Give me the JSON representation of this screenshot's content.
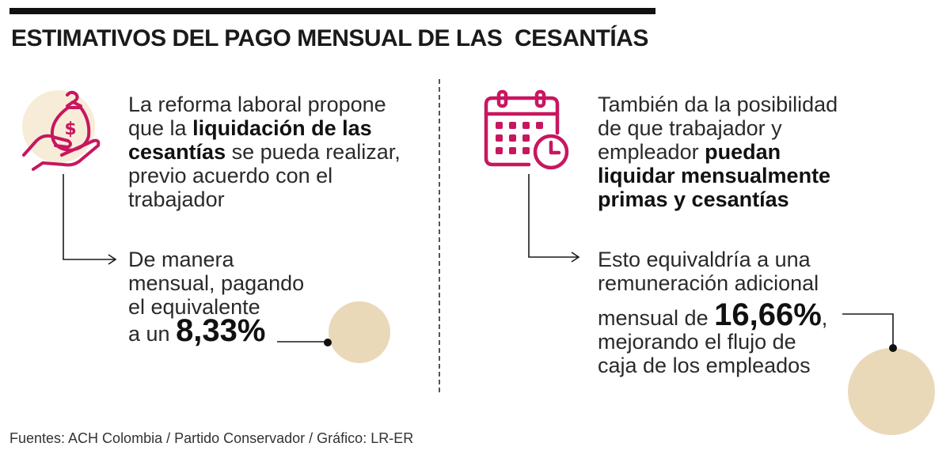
{
  "header": {
    "title": "ESTIMATIVOS DEL PAGO MENSUAL DE LAS  CESANTÍAS"
  },
  "left": {
    "icon": "money-bag-hand-icon",
    "text_1a": "La reforma laboral propone",
    "text_1b": "que la ",
    "text_1c": "liquidación de las",
    "text_1d": "cesantías",
    "text_1e": " se pueda realizar,",
    "text_1f": "previo acuerdo con el",
    "text_1g": "trabajador",
    "text_2a": "De manera",
    "text_2b": "mensual, pagando",
    "text_2c": "el equivalente",
    "text_2d": "a un ",
    "value": "8,33%"
  },
  "right": {
    "icon": "calendar-clock-icon",
    "text_1a": "También da la posibilidad",
    "text_1b": "de que trabajador y",
    "text_1c": "empleador ",
    "text_1d": "puedan",
    "text_1e": "liquidar mensualmente",
    "text_1f": "primas y cesantías",
    "text_2a": "Esto equivaldría a una",
    "text_2b": "remuneración adicional",
    "text_2c": "mensual de ",
    "value": "16,66%",
    "text_2d": ",",
    "text_2e": "mejorando el flujo de",
    "text_2f": "caja de los empleados"
  },
  "footer": {
    "source": "Fuentes: ACH Colombia / Partido Conservador / Gráfico: LR-ER"
  },
  "colors": {
    "accent": "#c8165f",
    "circle": "#ead9b9",
    "icon_bg": "#f7ecd8"
  }
}
